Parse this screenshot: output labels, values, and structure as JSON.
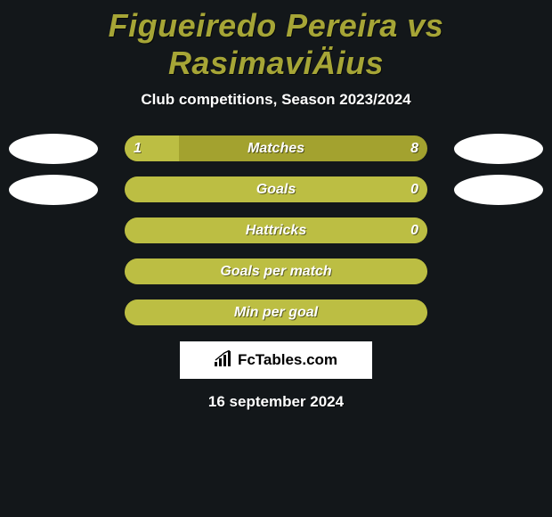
{
  "background_color": "#13171a",
  "text_color": "#ffffff",
  "title": "Figueiredo Pereira vs RasimaviÄius",
  "title_color": "#a6a536",
  "subtitle": "Club competitions, Season 2023/2024",
  "subtitle_color": "#ffffff",
  "ellipse_left_color": "#ffffff",
  "ellipse_right_color": "#ffffff",
  "bar_fill_left_color": "#bcbe43",
  "bar_base_color": "#a3a22f",
  "bar_label_color": "#ffffff",
  "logo_box_bg": "#ffffff",
  "logo_box_fg": "#000000",
  "logo_text": "FcTables.com",
  "date_text": "16 september 2024",
  "bars": [
    {
      "label": "Matches",
      "left_value": "1",
      "right_value": "8",
      "left_fill_pct": 18,
      "show_ellipses": true,
      "show_values": true
    },
    {
      "label": "Goals",
      "left_value": "",
      "right_value": "0",
      "left_fill_pct": 100,
      "show_ellipses": true,
      "show_values": true
    },
    {
      "label": "Hattricks",
      "left_value": "",
      "right_value": "0",
      "left_fill_pct": 100,
      "show_ellipses": false,
      "show_values": true
    },
    {
      "label": "Goals per match",
      "left_value": "",
      "right_value": "",
      "left_fill_pct": 100,
      "show_ellipses": false,
      "show_values": false
    },
    {
      "label": "Min per goal",
      "left_value": "",
      "right_value": "",
      "left_fill_pct": 100,
      "show_ellipses": false,
      "show_values": false
    }
  ]
}
